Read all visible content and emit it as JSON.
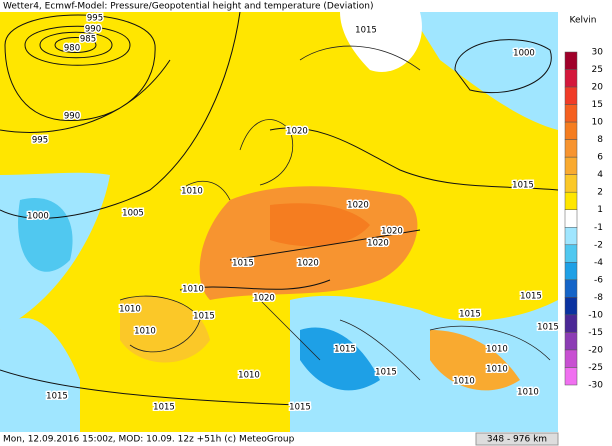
{
  "header": {
    "title": "Wetter4, Ecmwf-Model: Pressure/Geopotential height and temperature (Deviation)"
  },
  "footer": {
    "text": "Mon, 12.09.2016 15:00z, MOD: 10.09. 12z +51h (c) MeteoGroup",
    "scale": "348 - 976 km"
  },
  "legend": {
    "title": "Kelvin",
    "labels": [
      30,
      25,
      20,
      15,
      10,
      8,
      6,
      4,
      2,
      1,
      -1,
      -2,
      -4,
      -6,
      -8,
      -10,
      -15,
      -20,
      -25,
      -30
    ],
    "colors": [
      "#a0002a",
      "#d4183c",
      "#f03c28",
      "#f56020",
      "#f57d20",
      "#f79430",
      "#f9aa30",
      "#fbc828",
      "#ffe600",
      "#ffffff",
      "#a0e6ff",
      "#50c8f0",
      "#1ea0e6",
      "#1464c8",
      "#0a32a0",
      "#4b2896",
      "#8c3cb4",
      "#c850d2",
      "#f070f0"
    ]
  },
  "isobar_labels": [
    "995",
    "990",
    "985",
    "980",
    "990",
    "995",
    "1000",
    "1005",
    "1010",
    "1015",
    "1000",
    "1020",
    "1015",
    "1020",
    "1020",
    "1020",
    "1015",
    "1020",
    "1010",
    "1020",
    "1015",
    "1010",
    "1010",
    "1015",
    "1015",
    "1015",
    "1015",
    "1010",
    "1015",
    "1010",
    "1010",
    "1010",
    "1010",
    "1015",
    "1015",
    "1015"
  ]
}
